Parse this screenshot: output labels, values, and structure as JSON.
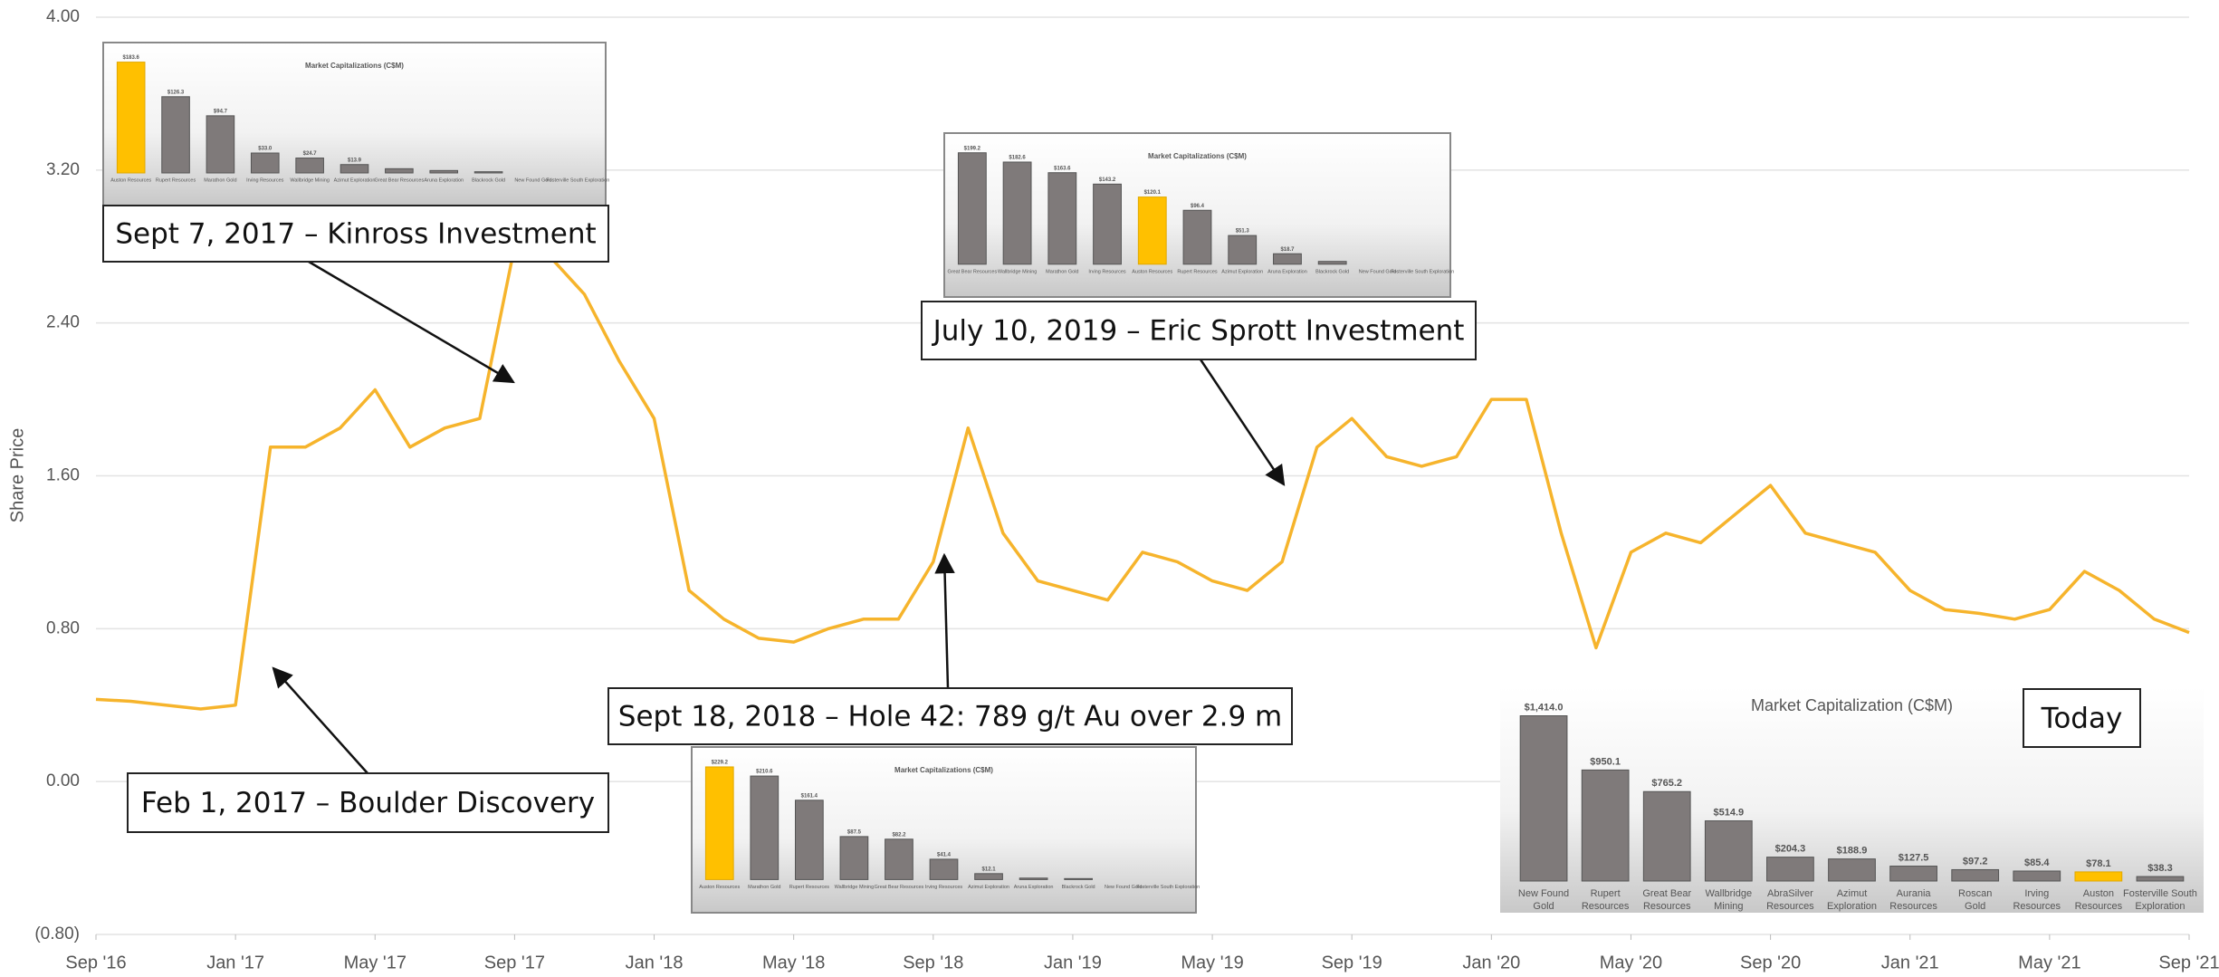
{
  "chart_data": [
    {
      "type": "line",
      "ylabel": "Share Price",
      "color": "#f6b42c",
      "grid": true,
      "x": [
        "2016-09",
        "2016-10",
        "2016-11",
        "2016-12",
        "2017-01",
        "2017-02",
        "2017-03",
        "2017-04",
        "2017-05",
        "2017-06",
        "2017-07",
        "2017-08",
        "2017-09",
        "2017-10",
        "2017-11",
        "2017-12",
        "2018-01",
        "2018-02",
        "2018-03",
        "2018-04",
        "2018-05",
        "2018-06",
        "2018-07",
        "2018-08",
        "2018-09",
        "2018-10",
        "2018-11",
        "2018-12",
        "2019-01",
        "2019-02",
        "2019-03",
        "2019-04",
        "2019-05",
        "2019-06",
        "2019-07",
        "2019-08",
        "2019-09",
        "2019-10",
        "2019-11",
        "2019-12",
        "2020-01",
        "2020-02",
        "2020-03",
        "2020-04",
        "2020-05",
        "2020-06",
        "2020-07",
        "2020-08",
        "2020-09",
        "2020-10",
        "2020-11",
        "2020-12",
        "2021-01",
        "2021-02",
        "2021-03",
        "2021-04",
        "2021-05",
        "2021-06",
        "2021-07",
        "2021-08",
        "2021-09"
      ],
      "values": [
        0.43,
        0.42,
        0.4,
        0.38,
        0.4,
        1.75,
        1.75,
        1.85,
        2.05,
        1.75,
        1.85,
        1.9,
        2.8,
        2.75,
        2.55,
        2.2,
        1.9,
        1.0,
        0.85,
        0.75,
        0.73,
        0.8,
        0.85,
        0.85,
        1.15,
        1.85,
        1.3,
        1.05,
        1.0,
        0.95,
        1.2,
        1.15,
        1.05,
        1.0,
        1.15,
        1.75,
        1.9,
        1.7,
        1.65,
        1.7,
        2.0,
        2.0,
        1.3,
        0.7,
        1.2,
        1.3,
        1.25,
        1.4,
        1.55,
        1.3,
        1.25,
        1.2,
        1.0,
        0.9,
        0.88,
        0.85,
        0.9,
        1.1,
        1.0,
        0.85,
        0.78
      ],
      "xlim": [
        "2016-09",
        "2021-09"
      ],
      "xticks": [
        {
          "value": "2016-09",
          "label": "Sep '16"
        },
        {
          "value": "2017-01",
          "label": "Jan '17"
        },
        {
          "value": "2017-05",
          "label": "May '17"
        },
        {
          "value": "2017-09",
          "label": "Sep '17"
        },
        {
          "value": "2018-01",
          "label": "Jan '18"
        },
        {
          "value": "2018-05",
          "label": "May '18"
        },
        {
          "value": "2018-09",
          "label": "Sep '18"
        },
        {
          "value": "2019-01",
          "label": "Jan '19"
        },
        {
          "value": "2019-05",
          "label": "May '19"
        },
        {
          "value": "2019-09",
          "label": "Sep '19"
        },
        {
          "value": "2020-01",
          "label": "Jan '20"
        },
        {
          "value": "2020-05",
          "label": "May '20"
        },
        {
          "value": "2020-09",
          "label": "Sep '20"
        },
        {
          "value": "2021-01",
          "label": "Jan '21"
        },
        {
          "value": "2021-05",
          "label": "May '21"
        },
        {
          "value": "2021-09",
          "label": "Sep '21"
        }
      ],
      "ylim": [
        -0.8,
        4.0
      ],
      "yticks": [
        {
          "value": -0.8,
          "label": "(0.80)"
        },
        {
          "value": 0,
          "label": "0.00"
        },
        {
          "value": 0.8,
          "label": "0.80"
        },
        {
          "value": 1.6,
          "label": "1.60"
        },
        {
          "value": 2.4,
          "label": "2.40"
        },
        {
          "value": 3.2,
          "label": "3.20"
        },
        {
          "value": 4.0,
          "label": "4.00"
        }
      ],
      "annotations": [
        "Feb 1, 2017 – Boulder Discovery",
        "Sept 7, 2017 – Kinross Investment",
        "Sept 18, 2018 – Hole 42: 789 g/t Au over 2.9 m",
        "July 10, 2019 – Eric Sprott Investment"
      ]
    },
    {
      "type": "bar",
      "title": "Market Capitalizations (C$M)",
      "categories": [
        "Auston Resources",
        "Rupert Resources",
        "Marathon Gold",
        "Irving Resources",
        "Wallbridge Mining",
        "Azimut Exploration",
        "Great Bear Resources",
        "Aruna Exploration",
        "Blackrock Gold",
        "New Found Gold",
        "Fosterville South Exploration"
      ],
      "values": [
        183.6,
        126.3,
        94.7,
        33.0,
        24.7,
        13.9,
        7,
        4,
        2,
        0,
        0
      ],
      "value_labels": [
        "$183.6",
        "$126.3",
        "$94.7",
        "$33.0",
        "$24.7",
        "$13.9",
        null,
        null,
        null,
        null,
        null
      ],
      "colors": [
        "#ffc000",
        "#7f7a7a",
        "#7f7a7a",
        "#7f7a7a",
        "#7f7a7a",
        "#7f7a7a",
        "#7f7a7a",
        "#7f7a7a",
        "#7f7a7a",
        "#7f7a7a",
        "#7f7a7a"
      ]
    },
    {
      "type": "bar",
      "title": "Market Capitalizations (C$M)",
      "categories": [
        "Great Bear Resources",
        "Wallbridge Mining",
        "Marathon Gold",
        "Irving Resources",
        "Auston Resources",
        "Rupert Resources",
        "Azimut Exploration",
        "Aruna Exploration",
        "Blackrock Gold",
        "New Found Gold",
        "Fosterville South Exploration"
      ],
      "values": [
        199.2,
        182.6,
        163.6,
        143.2,
        120.1,
        96.4,
        51.3,
        18.7,
        5,
        0,
        0
      ],
      "value_labels": [
        "$199.2",
        "$182.6",
        "$163.6",
        "$143.2",
        "$120.1",
        "$96.4",
        "$51.3",
        "$18.7",
        null,
        null,
        null
      ],
      "colors": [
        "#7f7a7a",
        "#7f7a7a",
        "#7f7a7a",
        "#7f7a7a",
        "#ffc000",
        "#7f7a7a",
        "#7f7a7a",
        "#7f7a7a",
        "#7f7a7a",
        "#7f7a7a",
        "#7f7a7a"
      ]
    },
    {
      "type": "bar",
      "title": "Market Capitalizations (C$M)",
      "categories": [
        "Auston Resources",
        "Marathon Gold",
        "Rupert Resources",
        "Wallbridge Mining",
        "Great Bear Resources",
        "Irving Resources",
        "Azimut Exploration",
        "Aruna Exploration",
        "Blackrock Gold",
        "New Found Gold",
        "Fosterville South Exploration"
      ],
      "values": [
        229.2,
        210.6,
        161.4,
        87.5,
        82.2,
        41.4,
        12.1,
        3,
        2,
        0,
        0
      ],
      "value_labels": [
        "$229.2",
        "$210.6",
        "$161.4",
        "$87.5",
        "$82.2",
        "$41.4",
        "$12.1",
        null,
        null,
        null,
        null
      ],
      "colors": [
        "#ffc000",
        "#7f7a7a",
        "#7f7a7a",
        "#7f7a7a",
        "#7f7a7a",
        "#7f7a7a",
        "#7f7a7a",
        "#7f7a7a",
        "#7f7a7a",
        "#7f7a7a",
        "#7f7a7a"
      ]
    },
    {
      "type": "bar",
      "title": "Market Capitalization (C$M)",
      "label": "Today",
      "categories": [
        "New Found Gold",
        "Rupert Resources",
        "Great Bear Resources",
        "Wallbridge Mining",
        "AbraSilver Resources",
        "Azimut Exploration",
        "Aurania Resources",
        "Roscan Gold",
        "Irving Resources",
        "Auston Resources",
        "Fosterville South Exploration"
      ],
      "values": [
        1414.0,
        950.1,
        765.2,
        514.9,
        204.3,
        188.9,
        127.5,
        97.2,
        85.4,
        78.1,
        38.3
      ],
      "value_labels": [
        "$1,414.0",
        "$950.1",
        "$765.2",
        "$514.9",
        "$204.3",
        "$188.9",
        "$127.5",
        "$97.2",
        "$85.4",
        "$78.1",
        "$38.3"
      ],
      "colors": [
        "#7f7a7a",
        "#7f7a7a",
        "#7f7a7a",
        "#7f7a7a",
        "#7f7a7a",
        "#7f7a7a",
        "#7f7a7a",
        "#7f7a7a",
        "#7f7a7a",
        "#ffc000",
        "#7f7a7a"
      ]
    }
  ]
}
